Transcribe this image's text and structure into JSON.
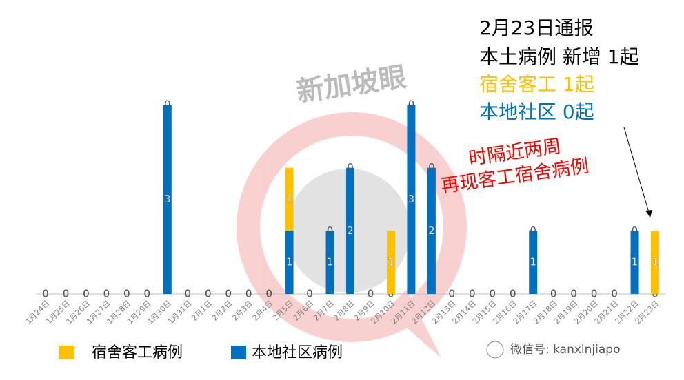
{
  "chart_data": {
    "type": "stacked-bar",
    "categories": [
      "1月24日",
      "1月25日",
      "1月26日",
      "1月27日",
      "1月28日",
      "1月29日",
      "1月30日",
      "1月31日",
      "2月1日",
      "2月2日",
      "2月3日",
      "2月4日",
      "2月5日",
      "2月6日",
      "2月7日",
      "2月8日",
      "2月9日",
      "2月10日",
      "2月11日",
      "2月12日",
      "2月13日",
      "2月14日",
      "2月15日",
      "2月16日",
      "2月17日",
      "2月18日",
      "2月19日",
      "2月20日",
      "2月21日",
      "2月22日",
      "2月23日"
    ],
    "series": [
      {
        "name": "本地社区病例",
        "color": "#0070c0",
        "values": [
          0,
          0,
          0,
          0,
          0,
          0,
          3,
          0,
          0,
          0,
          0,
          0,
          1,
          0,
          1,
          2,
          0,
          0,
          3,
          2,
          0,
          0,
          0,
          0,
          1,
          0,
          0,
          0,
          0,
          1,
          0
        ]
      },
      {
        "name": "宿舍客工病例",
        "color": "#ffc000",
        "values": [
          0,
          0,
          0,
          0,
          0,
          0,
          0,
          0,
          0,
          0,
          0,
          0,
          1,
          0,
          0,
          0,
          0,
          1,
          0,
          0,
          0,
          0,
          0,
          0,
          0,
          0,
          0,
          0,
          0,
          0,
          1
        ]
      }
    ],
    "ylim": [
      0,
      3
    ],
    "annotations": [
      {
        "text": "2月23日通报",
        "color": "#000000"
      },
      {
        "text": "本土病例 新增 1起",
        "color": "#000000"
      },
      {
        "text": "宿舍客工 1起",
        "color": "#ffc000"
      },
      {
        "text": "本地社区 0起",
        "color": "#0070c0"
      },
      {
        "text": "时隔近两周",
        "color": "#ff0000"
      },
      {
        "text": "再现客工宿舍病例",
        "color": "#ff0000"
      }
    ],
    "watermark": "新加坡眼",
    "wechat": "微信号: kanxinjiapo"
  }
}
